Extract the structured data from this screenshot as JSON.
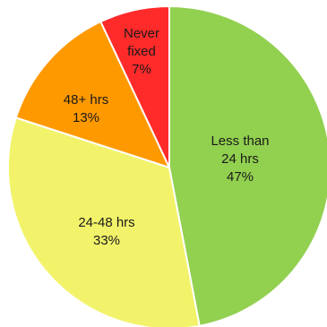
{
  "chart_data": {
    "type": "pie",
    "slices": [
      {
        "label_lines": [
          "Less than",
          "24 hrs"
        ],
        "value": 47,
        "value_text": "47%",
        "color": "#92d050"
      },
      {
        "label_lines": [
          "24-48 hrs"
        ],
        "value": 33,
        "value_text": "33%",
        "color": "#f2f36a"
      },
      {
        "label_lines": [
          "48+ hrs"
        ],
        "value": 13,
        "value_text": "13%",
        "color": "#ff9900"
      },
      {
        "label_lines": [
          "Never",
          "fixed"
        ],
        "value": 7,
        "value_text": "7%",
        "color": "#ff2a2a"
      }
    ],
    "start_direction": "top",
    "direction": "clockwise",
    "stroke_color": "#ffffff"
  }
}
